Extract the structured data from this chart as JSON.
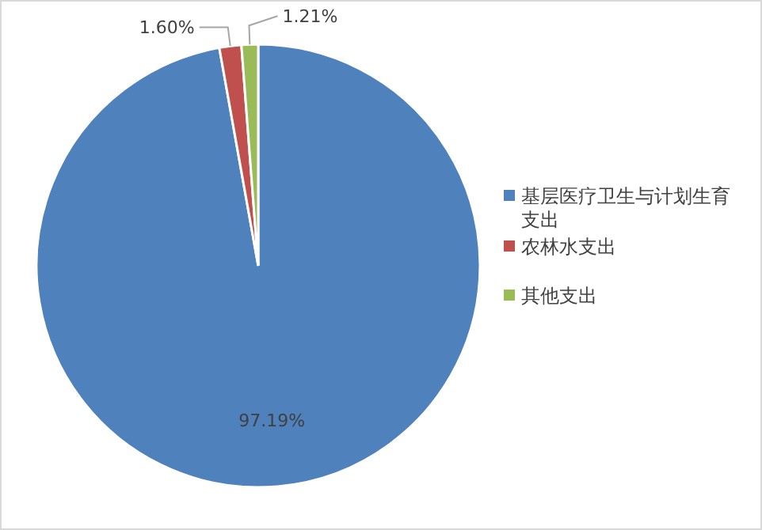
{
  "chart_data": {
    "type": "pie",
    "categories": [
      "基层医疗卫生与计划生育支出",
      "农林水支出",
      "其他支出"
    ],
    "values": [
      97.19,
      1.6,
      1.21
    ],
    "colors": [
      "#4f81bd",
      "#c0504d",
      "#9bbb59"
    ],
    "value_labels": [
      "97.19%",
      "1.60%",
      "1.21%"
    ],
    "legend": "right"
  }
}
